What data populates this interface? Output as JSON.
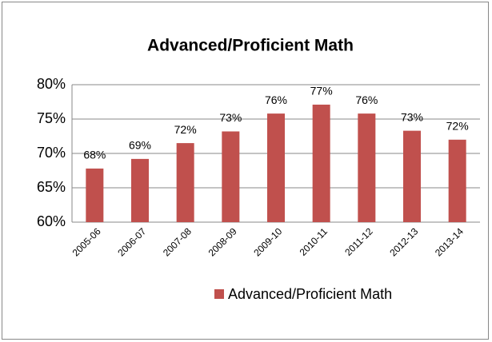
{
  "chart_data": {
    "type": "bar",
    "title": "Advanced/Proficient Math",
    "categories": [
      "2005-06",
      "2006-07",
      "2007-08",
      "2008-09",
      "2009-10",
      "2010-11",
      "2011-12",
      "2012-13",
      "2013-14"
    ],
    "series": [
      {
        "name": "Advanced/Proficient Math",
        "color": "#c0504d",
        "values": [
          67.8,
          69.2,
          71.5,
          73.2,
          75.8,
          77.1,
          75.8,
          73.3,
          72.0
        ],
        "value_labels": [
          "68%",
          "69%",
          "72%",
          "73%",
          "76%",
          "77%",
          "76%",
          "73%",
          "72%"
        ]
      }
    ],
    "ylim": [
      60,
      80
    ],
    "yticks": [
      {
        "value": 60,
        "label": "60%"
      },
      {
        "value": 65,
        "label": "65%"
      },
      {
        "value": 70,
        "label": "70%"
      },
      {
        "value": 75,
        "label": "75%"
      },
      {
        "value": 80,
        "label": "80%"
      }
    ],
    "grid": true,
    "legend": "bottom"
  }
}
